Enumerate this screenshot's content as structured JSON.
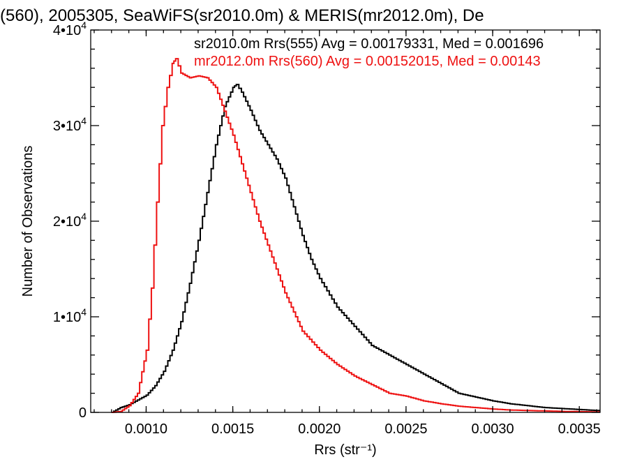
{
  "chart_data": {
    "type": "line",
    "title": "(560), 2005305, SeaWiFS(sr2010.0m) & MERIS(mr2012.0m), De",
    "xlabel": "Rrs (str⁻¹)",
    "ylabel": "Number of Observations",
    "xlim": [
      0.00068,
      0.00362
    ],
    "ylim": [
      0,
      40000
    ],
    "x_ticks": [
      0.001,
      0.0015,
      0.002,
      0.0025,
      0.003,
      0.0035
    ],
    "x_tick_labels": [
      "0.0010",
      "0.0015",
      "0.0020",
      "0.0025",
      "0.0030",
      "0.0035"
    ],
    "y_ticks": [
      {
        "value": 0,
        "mantissa": "0",
        "exp": ""
      },
      {
        "value": 10000,
        "mantissa": "1•10",
        "exp": "4"
      },
      {
        "value": 20000,
        "mantissa": "2•10",
        "exp": "4"
      },
      {
        "value": 30000,
        "mantissa": "3•10",
        "exp": "4"
      },
      {
        "value": 40000,
        "mantissa": "4•10",
        "exp": "4"
      }
    ],
    "grid": false,
    "stats": [
      {
        "text": "sr2010.0m Rrs(555) Avg = 0.00179331, Med = 0.001696",
        "color": "#000000"
      },
      {
        "text": "mr2012.0m Rrs(560) Avg = 0.00152015, Med = 0.00143",
        "color": "#ee1111"
      }
    ],
    "series": [
      {
        "color": "#000000",
        "x": [
          0.0008,
          0.00085,
          0.0009,
          0.00095,
          0.001,
          0.00105,
          0.0011,
          0.00115,
          0.0012,
          0.00125,
          0.0013,
          0.00135,
          0.0014,
          0.00145,
          0.0015,
          0.00152,
          0.00155,
          0.0016,
          0.00165,
          0.0017,
          0.00175,
          0.0018,
          0.00185,
          0.0019,
          0.00195,
          0.002,
          0.0021,
          0.0022,
          0.0023,
          0.0024,
          0.0025,
          0.0026,
          0.0027,
          0.0028,
          0.0029,
          0.003,
          0.0031,
          0.0032,
          0.0033,
          0.0034,
          0.0035,
          0.0036
        ],
        "y": [
          0,
          500,
          800,
          1300,
          1800,
          2800,
          4300,
          6500,
          9500,
          13500,
          18000,
          23000,
          28000,
          32000,
          34000,
          34300,
          33500,
          31600,
          29500,
          28000,
          26500,
          24500,
          21500,
          18500,
          16000,
          14000,
          11000,
          9000,
          7000,
          6000,
          5000,
          4000,
          3000,
          2000,
          1600,
          1200,
          900,
          700,
          500,
          400,
          300,
          200
        ]
      },
      {
        "color": "#ee1111",
        "x": [
          0.0008,
          0.00085,
          0.0009,
          0.00095,
          0.001,
          0.00103,
          0.00106,
          0.00109,
          0.00112,
          0.00115,
          0.00117,
          0.0012,
          0.00125,
          0.0013,
          0.00135,
          0.0014,
          0.00145,
          0.0015,
          0.00155,
          0.0016,
          0.00165,
          0.0017,
          0.00175,
          0.0018,
          0.00185,
          0.0019,
          0.002,
          0.0021,
          0.0022,
          0.0023,
          0.0024,
          0.0025,
          0.0026,
          0.0027,
          0.0028,
          0.0029,
          0.003,
          0.0031,
          0.0032,
          0.0033,
          0.0034,
          0.0035,
          0.0036
        ],
        "y": [
          0,
          100,
          700,
          2000,
          6500,
          13000,
          22000,
          30000,
          34000,
          36500,
          37000,
          35500,
          35000,
          35200,
          35000,
          34000,
          31500,
          29000,
          26000,
          23000,
          20000,
          17500,
          15000,
          12500,
          10500,
          8500,
          6500,
          5000,
          3800,
          2900,
          2000,
          1700,
          1200,
          900,
          650,
          500,
          350,
          250,
          200,
          150,
          100,
          80,
          50
        ]
      }
    ]
  }
}
